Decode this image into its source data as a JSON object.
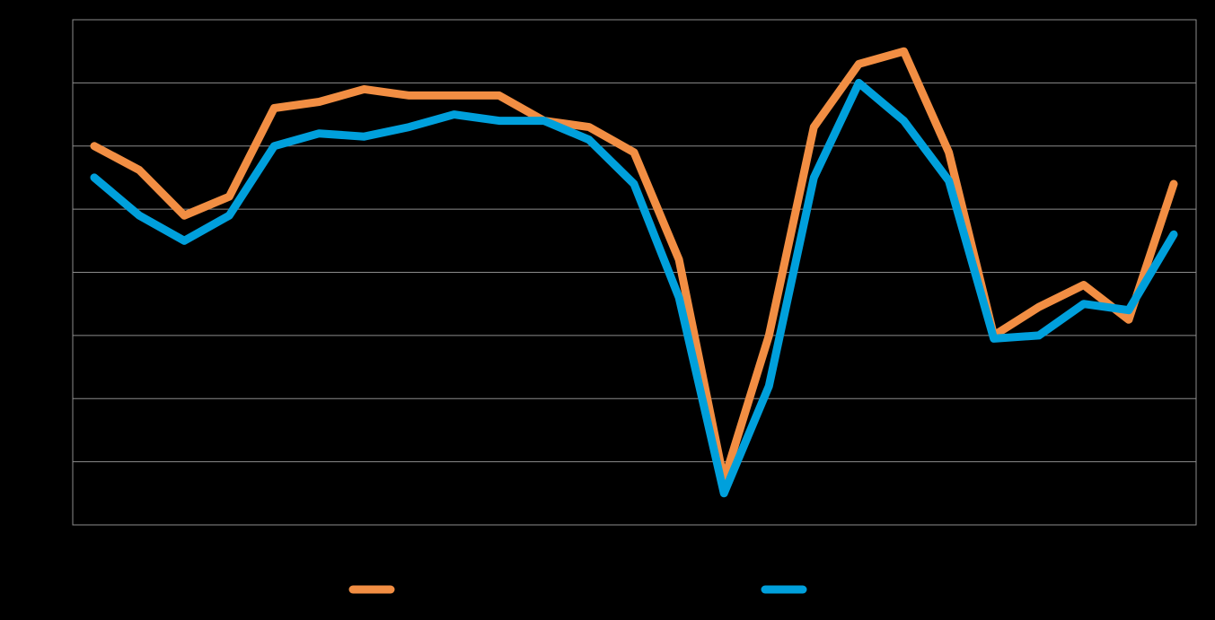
{
  "chart_data": {
    "type": "line",
    "title": "",
    "xlabel": "",
    "ylabel": "",
    "ylim": [
      0,
      8
    ],
    "grid": true,
    "legend_position": "bottom",
    "x": [
      1,
      2,
      3,
      4,
      5,
      6,
      7,
      8,
      9,
      10,
      11,
      12,
      13,
      14,
      15,
      16,
      17,
      18,
      19,
      20,
      21,
      22,
      23,
      24,
      25
    ],
    "series": [
      {
        "name": "",
        "color": "#f28e43",
        "values": [
          6.0,
          5.62,
          4.9,
          5.2,
          6.6,
          6.7,
          6.9,
          6.8,
          6.8,
          6.8,
          6.4,
          6.3,
          5.9,
          4.2,
          0.7,
          3.0,
          6.3,
          7.3,
          7.5,
          5.9,
          3.0,
          3.45,
          3.8,
          3.25,
          5.4
        ],
        "legend_label": ""
      },
      {
        "name": "",
        "color": "#00a0dc",
        "values": [
          5.5,
          4.9,
          4.5,
          4.9,
          6.0,
          6.2,
          6.15,
          6.3,
          6.5,
          6.4,
          6.4,
          6.1,
          5.4,
          3.6,
          0.5,
          2.2,
          5.5,
          7.0,
          6.4,
          5.45,
          2.95,
          3.0,
          3.5,
          3.4,
          4.6
        ],
        "legend_label": ""
      }
    ]
  }
}
